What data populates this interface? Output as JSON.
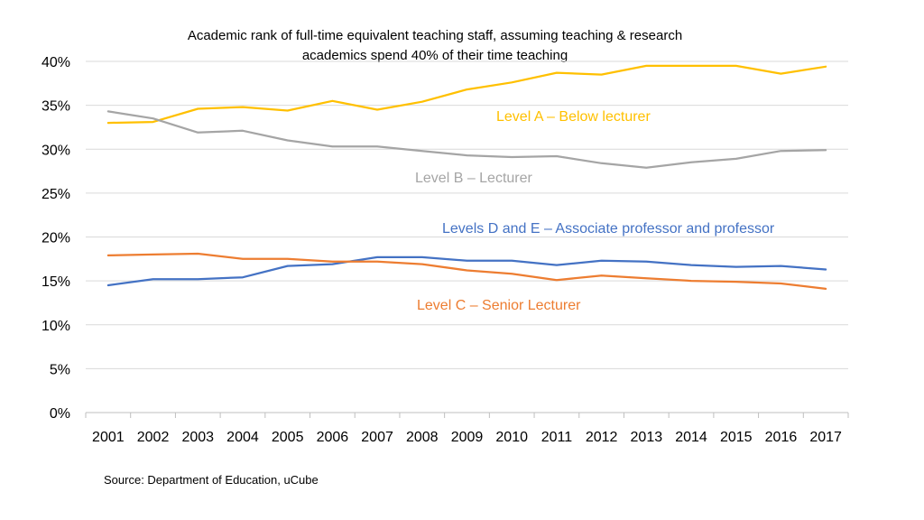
{
  "chart_data": {
    "type": "line",
    "title_lines": [
      "Academic rank of full-time equivalent teaching staff, assuming teaching & research",
      "academics spend 40% of their time teaching"
    ],
    "categories": [
      "2001",
      "2002",
      "2003",
      "2004",
      "2005",
      "2006",
      "2007",
      "2008",
      "2009",
      "2010",
      "2011",
      "2012",
      "2013",
      "2014",
      "2015",
      "2016",
      "2017"
    ],
    "y_ticks": [
      "0%",
      "5%",
      "10%",
      "15%",
      "20%",
      "25%",
      "30%",
      "35%",
      "40%"
    ],
    "ylim": [
      0,
      40
    ],
    "grid": true,
    "series": [
      {
        "name": "Level A – Below lecturer",
        "color": "#FFC000",
        "values": [
          33.0,
          33.1,
          34.6,
          34.8,
          34.4,
          35.5,
          34.5,
          35.4,
          36.8,
          37.6,
          38.7,
          38.5,
          39.5,
          39.5,
          39.5,
          38.6,
          39.4
        ]
      },
      {
        "name": "Level B – Lecturer",
        "color": "#A5A5A5",
        "values": [
          34.3,
          33.5,
          31.9,
          32.1,
          31.0,
          30.3,
          30.3,
          29.8,
          29.3,
          29.1,
          29.2,
          28.4,
          27.9,
          28.5,
          28.9,
          29.8,
          29.9
        ]
      },
      {
        "name": "Levels D and E – Associate professor and professor",
        "color": "#4472C4",
        "values": [
          14.5,
          15.2,
          15.2,
          15.4,
          16.7,
          16.9,
          17.7,
          17.7,
          17.3,
          17.3,
          16.8,
          17.3,
          17.2,
          16.8,
          16.6,
          16.7,
          16.3
        ]
      },
      {
        "name": "Level C – Senior Lecturer",
        "color": "#ED7D31",
        "values": [
          17.9,
          18.0,
          18.1,
          17.5,
          17.5,
          17.2,
          17.2,
          16.9,
          16.2,
          15.8,
          15.1,
          15.6,
          15.3,
          15.0,
          14.9,
          14.7,
          14.1
        ]
      }
    ],
    "source": "Source: Department of Education, uCube"
  }
}
